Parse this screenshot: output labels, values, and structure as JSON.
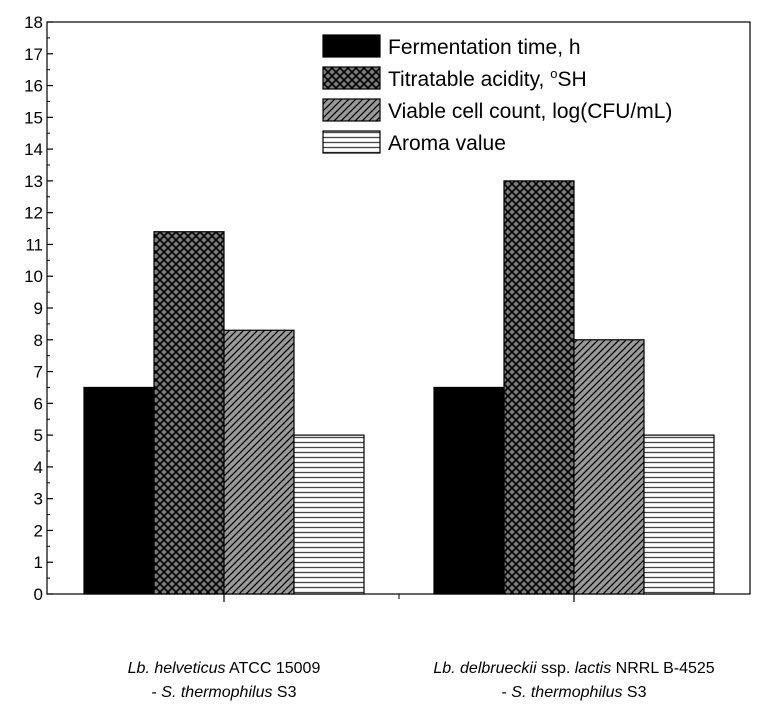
{
  "chart_data": {
    "type": "bar",
    "title": "",
    "xlabel": "",
    "ylabel": "",
    "ylim": [
      0,
      18
    ],
    "yticks": [
      0,
      1,
      2,
      3,
      4,
      5,
      6,
      7,
      8,
      9,
      10,
      11,
      12,
      13,
      14,
      15,
      16,
      17,
      18
    ],
    "categories": [
      {
        "line1": [
          {
            "text": "Lb. helveticus",
            "italic": true
          },
          {
            "text": " ATCC 15009",
            "italic": false
          }
        ],
        "line2": [
          {
            "text": "- ",
            "italic": false
          },
          {
            "text": "S. thermophilus",
            "italic": true
          },
          {
            "text": " S3",
            "italic": false
          }
        ]
      },
      {
        "line1": [
          {
            "text": "Lb. delbrueckii",
            "italic": true
          },
          {
            "text": " ssp. ",
            "italic": false
          },
          {
            "text": "lactis",
            "italic": true
          },
          {
            "text": " NRRL B-4525",
            "italic": false
          }
        ],
        "line2": [
          {
            "text": "- ",
            "italic": false
          },
          {
            "text": "S. thermophilus",
            "italic": true
          },
          {
            "text": " S3",
            "italic": false
          }
        ]
      }
    ],
    "series": [
      {
        "name": "Fermentation time, h",
        "values": [
          6.5,
          6.5
        ],
        "pattern": "solid",
        "color": "#000000"
      },
      {
        "name": "Titratable acidity, °SH",
        "name_parts": {
          "before": "Titratable acidity, ",
          "sup": "o",
          "after": "SH"
        },
        "values": [
          11.4,
          13.0
        ],
        "pattern": "crosshatch",
        "color": "#000000"
      },
      {
        "name": "Viable cell count, log(CFU/mL)",
        "values": [
          8.3,
          8.0
        ],
        "pattern": "diagonal",
        "color": "#000000"
      },
      {
        "name": "Aroma value",
        "values": [
          5.0,
          5.0
        ],
        "pattern": "horizontal",
        "color": "#000000"
      }
    ],
    "legend": {
      "position": "top-right"
    },
    "grid": false
  }
}
